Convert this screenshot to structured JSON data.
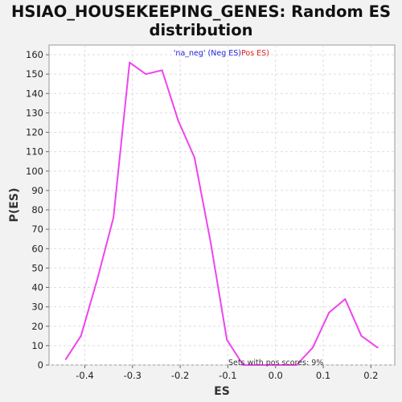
{
  "chart_data": {
    "type": "line",
    "title_line1": "HSIAO_HOUSEKEEPING_GENES: Random ES",
    "title_line2": "distribution",
    "xlabel": "ES",
    "ylabel": "P(ES)",
    "xlim": [
      -0.475,
      0.25
    ],
    "ylim": [
      0,
      165
    ],
    "xticks": [
      -0.4,
      -0.3,
      -0.2,
      -0.1,
      0.0,
      0.1,
      0.2
    ],
    "xtick_labels": [
      "-0.4",
      "-0.3",
      "-0.2",
      "-0.1",
      "0.0",
      "0.1",
      "0.2"
    ],
    "yticks": [
      0,
      10,
      20,
      30,
      40,
      50,
      60,
      70,
      80,
      90,
      100,
      110,
      120,
      130,
      140,
      150,
      160
    ],
    "ytick_labels": [
      "0",
      "10",
      "20",
      "30",
      "40",
      "50",
      "60",
      "70",
      "80",
      "90",
      "100",
      "110",
      "120",
      "130",
      "140",
      "150",
      "160"
    ],
    "grid": true,
    "legend": {
      "placement": "top-center",
      "neg_label": "'na_neg' (Neg ES)",
      "pos_label": "Pos ES)"
    },
    "annotation": "Sets with pos scores: 9%",
    "series": [
      {
        "color": "#ee44ee",
        "x": [
          -0.44,
          -0.408,
          -0.374,
          -0.34,
          -0.306,
          -0.272,
          -0.238,
          -0.204,
          -0.17,
          -0.136,
          -0.102,
          -0.068,
          -0.034,
          0.0,
          0.044,
          0.078,
          0.112,
          0.146,
          0.18,
          0.214
        ],
        "y": [
          3,
          15,
          44,
          76,
          156,
          150,
          152,
          126,
          107,
          63,
          13,
          0,
          0,
          0,
          0,
          9,
          27,
          34,
          15,
          9
        ]
      }
    ]
  }
}
